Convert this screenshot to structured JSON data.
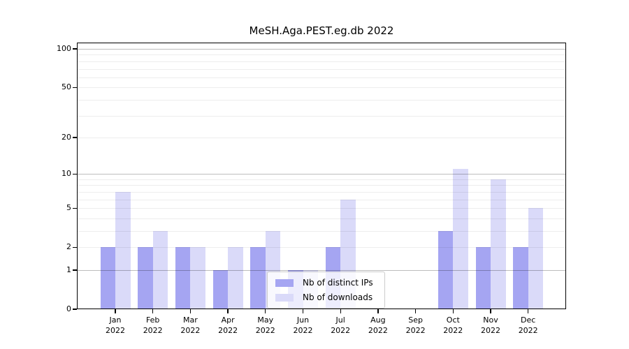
{
  "chart_data": {
    "type": "bar",
    "title": "MeSH.Aga.PEST.eg.db 2022",
    "year_label": "2022",
    "categories": [
      "Jan",
      "Feb",
      "Mar",
      "Apr",
      "May",
      "Jun",
      "Jul",
      "Aug",
      "Sep",
      "Oct",
      "Nov",
      "Dec"
    ],
    "series": [
      {
        "name": "Nb of distinct IPs",
        "color": "#a5a5f2",
        "values": [
          2,
          2,
          2,
          1,
          2,
          1,
          2,
          0,
          0,
          3,
          2,
          2
        ]
      },
      {
        "name": "Nb of downloads",
        "color": "#dadaf9",
        "values": [
          7,
          3,
          2,
          2,
          3,
          1,
          6,
          0,
          0,
          11,
          9,
          5
        ]
      }
    ],
    "yticks": [
      0,
      1,
      2,
      5,
      10,
      20,
      50,
      100
    ],
    "scale": "log1p",
    "ylim": [
      0,
      112
    ],
    "grid": true,
    "legend_position": "lower-center",
    "colors": {
      "background": "#ffffff",
      "axis": "#000000",
      "grid_minor": "#ececec",
      "grid_major": "#bdbdbd",
      "legend_border": "#cccccc"
    }
  }
}
